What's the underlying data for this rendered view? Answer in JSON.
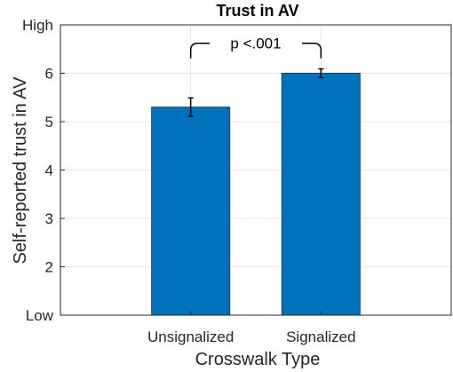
{
  "chart_data": {
    "type": "bar",
    "title": "Trust in AV",
    "xlabel": "Crosswalk Type",
    "ylabel": "Self-reported trust in AV",
    "categories": [
      "Unsignalized",
      "Signalized"
    ],
    "values": [
      5.3,
      6.0
    ],
    "error": [
      0.19,
      0.09
    ],
    "ylim": [
      1,
      7
    ],
    "yticks": [
      1,
      2,
      3,
      4,
      5,
      6,
      7
    ],
    "ytick_labels": [
      "Low",
      "2",
      "3",
      "4",
      "5",
      "6",
      "High"
    ],
    "grid": true,
    "bar_color": "#0072BD",
    "annotation": {
      "text": "p <.001",
      "from": "Unsignalized",
      "to": "Signalized",
      "y": 6.62
    }
  }
}
